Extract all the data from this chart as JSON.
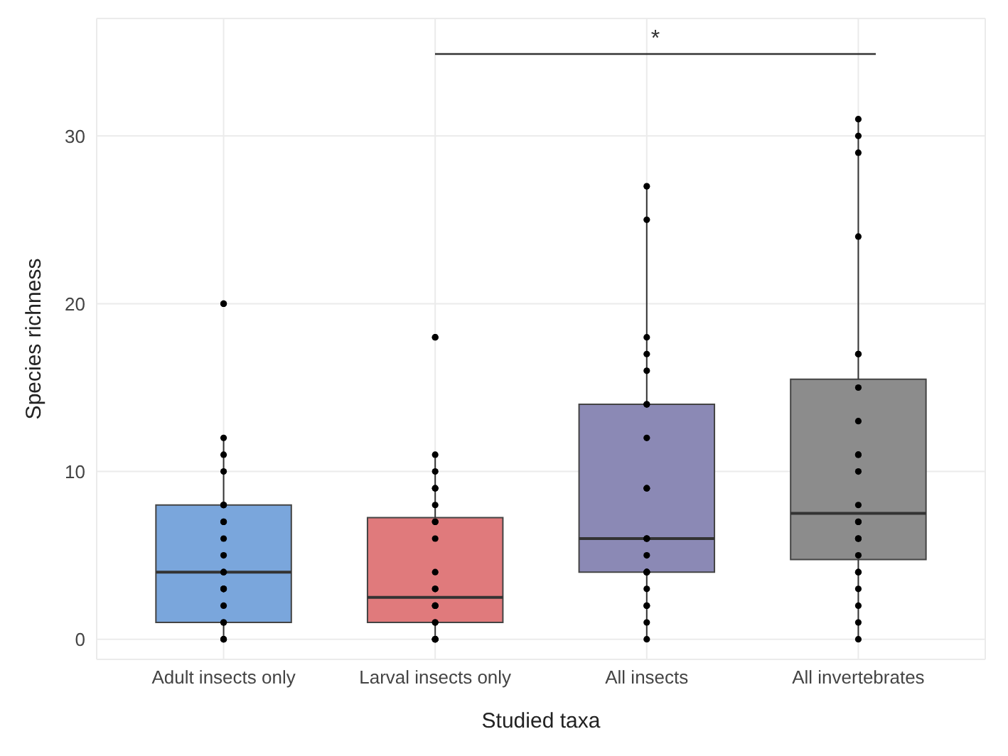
{
  "chart_data": {
    "type": "box",
    "xlabel": "Studied taxa",
    "ylabel": "Species richness",
    "categories": [
      "Adult insects only",
      "Larval insects only",
      "All insects",
      "All invertebrates"
    ],
    "colors": [
      "#7aa6dc",
      "#e07a7c",
      "#8b89b5",
      "#8c8c8c"
    ],
    "boxes": [
      {
        "low": 0,
        "q1": 1,
        "median": 4,
        "q3": 8,
        "high": 12
      },
      {
        "low": 0,
        "q1": 1,
        "median": 2.5,
        "q3": 7.25,
        "high": 11
      },
      {
        "low": 0,
        "q1": 4,
        "median": 6,
        "q3": 14,
        "high": 27
      },
      {
        "low": 0,
        "q1": 4.75,
        "median": 7.5,
        "q3": 15.5,
        "high": 31
      }
    ],
    "series": [
      {
        "type": "scatter",
        "color": "#000000",
        "x": [
          "Adult insects only",
          "Adult insects only",
          "Adult insects only",
          "Adult insects only",
          "Adult insects only",
          "Adult insects only",
          "Adult insects only",
          "Adult insects only",
          "Adult insects only",
          "Adult insects only",
          "Adult insects only",
          "Adult insects only",
          "Adult insects only",
          "Adult insects only",
          "Adult insects only",
          "Adult insects only",
          "Adult insects only",
          "Adult insects only",
          "Adult insects only",
          "Adult insects only",
          "Adult insects only",
          "Adult insects only",
          "Adult insects only",
          "Larval insects only",
          "Larval insects only",
          "Larval insects only",
          "Larval insects only",
          "Larval insects only",
          "Larval insects only",
          "Larval insects only",
          "Larval insects only",
          "Larval insects only",
          "Larval insects only",
          "Larval insects only",
          "Larval insects only",
          "Larval insects only",
          "Larval insects only",
          "Larval insects only",
          "Larval insects only",
          "Larval insects only",
          "Larval insects only",
          "Larval insects only",
          "Larval insects only",
          "Larval insects only",
          "Larval insects only",
          "Larval insects only",
          "All insects",
          "All insects",
          "All insects",
          "All insects",
          "All insects",
          "All insects",
          "All insects",
          "All insects",
          "All insects",
          "All insects",
          "All insects",
          "All insects",
          "All insects",
          "All insects",
          "All insects",
          "All insects",
          "All insects",
          "All insects",
          "All insects",
          "All insects",
          "All insects",
          "All insects",
          "All insects",
          "All invertebrates",
          "All invertebrates",
          "All invertebrates",
          "All invertebrates",
          "All invertebrates",
          "All invertebrates",
          "All invertebrates",
          "All invertebrates",
          "All invertebrates",
          "All invertebrates",
          "All invertebrates",
          "All invertebrates",
          "All invertebrates",
          "All invertebrates",
          "All invertebrates",
          "All invertebrates",
          "All invertebrates",
          "All invertebrates",
          "All invertebrates",
          "All invertebrates",
          "All invertebrates",
          "All invertebrates",
          "All invertebrates",
          "All invertebrates"
        ],
        "values": [
          20,
          20,
          12,
          11,
          10,
          8,
          8,
          8,
          7,
          7,
          6,
          5,
          4,
          4,
          3,
          3,
          3,
          2,
          1,
          1,
          0,
          0,
          0,
          18,
          18,
          11,
          10,
          9,
          9,
          8,
          7,
          7,
          6,
          4,
          3,
          3,
          2,
          2,
          2,
          1,
          1,
          0,
          0,
          0,
          0,
          0,
          27,
          25,
          18,
          17,
          16,
          14,
          14,
          12,
          9,
          9,
          6,
          6,
          6,
          5,
          4,
          4,
          4,
          4,
          3,
          2,
          2,
          1,
          0,
          31,
          30,
          29,
          24,
          17,
          17,
          15,
          13,
          11,
          11,
          10,
          8,
          7,
          7,
          6,
          6,
          6,
          5,
          4,
          4,
          3,
          2,
          1,
          0
        ]
      }
    ],
    "annotations": [
      "*"
    ],
    "ylim": [
      -1.2,
      37
    ],
    "yticks": [
      0,
      10,
      20,
      30
    ],
    "grid": true,
    "marker": "circle"
  }
}
